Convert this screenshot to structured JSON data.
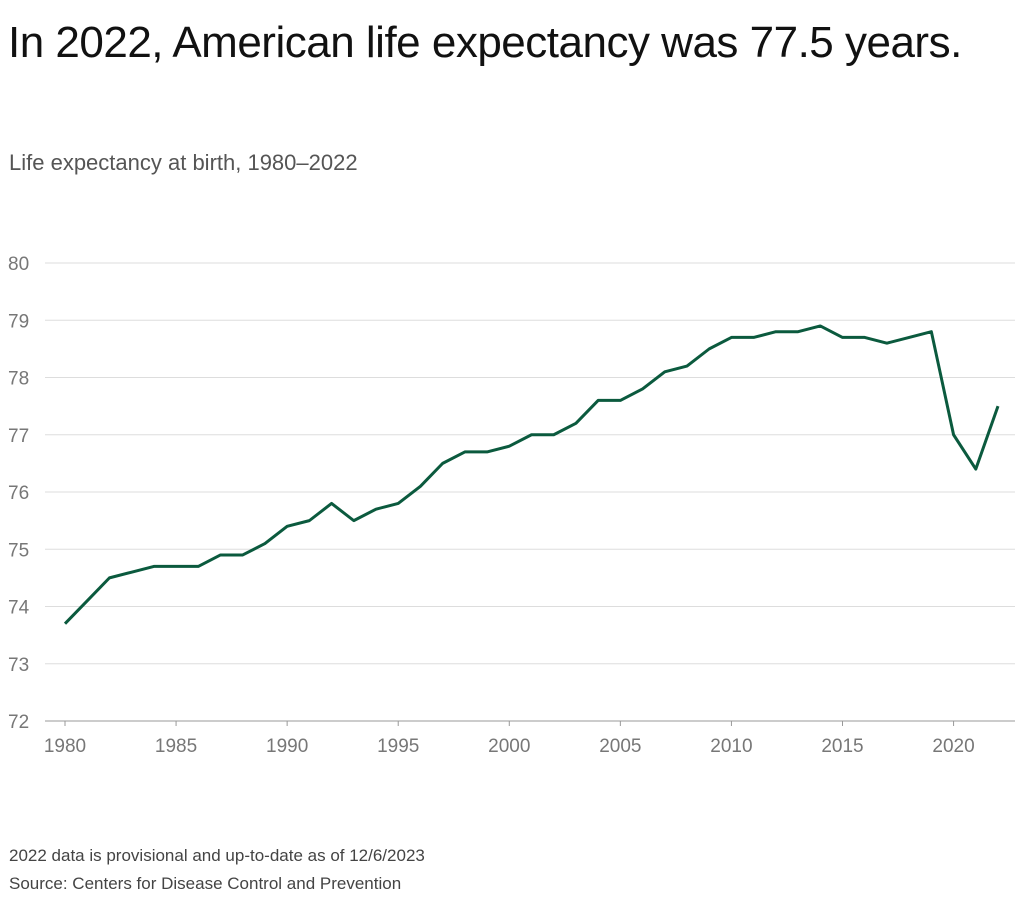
{
  "chart_data": {
    "type": "line",
    "title": "In 2022, American life expectancy was 77.5 years.",
    "subtitle": "Life expectancy at birth, 1980–2022",
    "notes": [
      "2022 data is provisional and up-to-date as of 12/6/2023",
      "Source: Centers for Disease Control and Prevention"
    ],
    "x": [
      1980,
      1981,
      1982,
      1983,
      1984,
      1985,
      1986,
      1987,
      1988,
      1989,
      1990,
      1991,
      1992,
      1993,
      1994,
      1995,
      1996,
      1997,
      1998,
      1999,
      2000,
      2001,
      2002,
      2003,
      2004,
      2005,
      2006,
      2007,
      2008,
      2009,
      2010,
      2011,
      2012,
      2013,
      2014,
      2015,
      2016,
      2017,
      2018,
      2019,
      2020,
      2021,
      2022
    ],
    "series": [
      {
        "color": "#0b5a3e",
        "values": [
          73.7,
          74.1,
          74.5,
          74.6,
          74.7,
          74.7,
          74.7,
          74.9,
          74.9,
          75.1,
          75.4,
          75.5,
          75.8,
          75.5,
          75.7,
          75.8,
          76.1,
          76.5,
          76.7,
          76.7,
          76.8,
          77.0,
          77.0,
          77.2,
          77.6,
          77.6,
          77.8,
          78.1,
          78.2,
          78.5,
          78.7,
          78.7,
          78.8,
          78.8,
          78.9,
          78.7,
          78.7,
          78.6,
          78.7,
          78.8,
          77.0,
          76.4,
          77.5
        ]
      }
    ],
    "xlim": [
      1980,
      2022
    ],
    "xticks": [
      1980,
      1985,
      1990,
      1995,
      2000,
      2005,
      2010,
      2015,
      2020
    ],
    "ylim": [
      72,
      80
    ],
    "yticks": [
      72,
      73,
      74,
      75,
      76,
      77,
      78,
      79,
      80
    ],
    "grid": true
  }
}
